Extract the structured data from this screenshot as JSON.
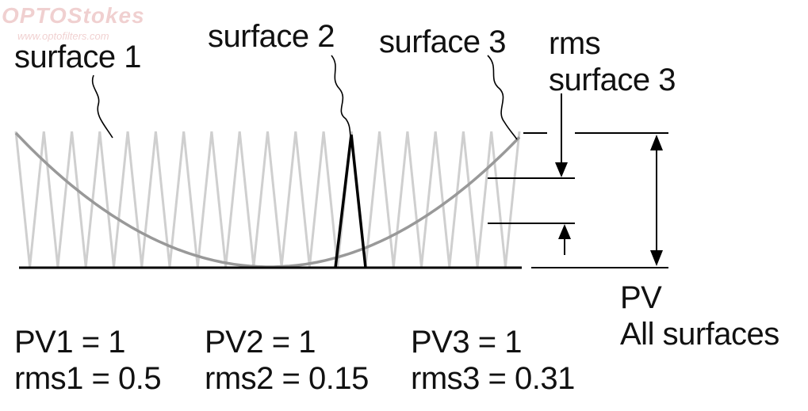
{
  "watermark": {
    "brand": "OPTOStokes",
    "url": "www.optofilters.com"
  },
  "labels": {
    "surface1": "surface 1",
    "surface2": "surface 2",
    "surface3": "surface 3",
    "rms_line1": "rms",
    "rms_line2": "surface 3",
    "pv_line1": "PV",
    "pv_line2": "All surfaces"
  },
  "stats": {
    "pv1": "PV1 = 1",
    "rms1": "rms1 = 0.5",
    "pv2": "PV2 = 1",
    "rms2": "rms2 = 0.15",
    "pv3": "PV3 = 1",
    "rms3": "rms3 = 0.31"
  },
  "colors": {
    "surface1": "#cfcfcf",
    "surface2": "#000000",
    "surface3": "#999999",
    "lines": "#000000"
  }
}
